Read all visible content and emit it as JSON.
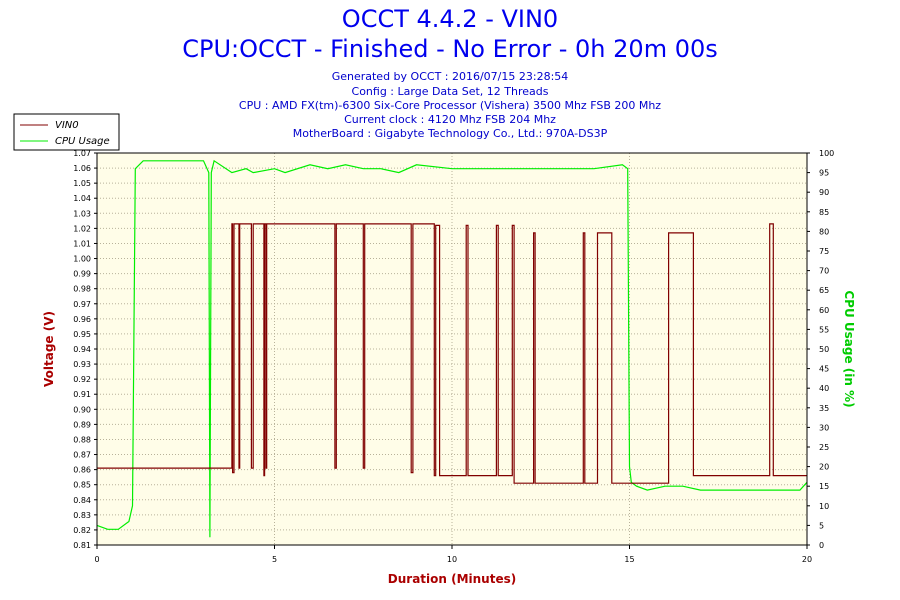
{
  "header": {
    "title": "OCCT 4.4.2 - VIN0",
    "subtitle": "CPU:OCCT - Finished - No Error - 0h 20m 00s",
    "info": [
      "Generated by OCCT : 2016/07/15 23:28:54",
      "Config : Large Data Set, 12 Threads",
      "CPU : AMD FX(tm)-6300 Six-Core Processor (Vishera) 3500 Mhz FSB 200 Mhz",
      "Current clock : 4120 Mhz FSB 204 Mhz",
      "MotherBoard : Gigabyte Technology Co., Ltd.: 970A-DS3P"
    ]
  },
  "colors": {
    "voltage": "#800000",
    "cpu": "#00ee00",
    "plot_bg": "#fffde8",
    "grid": "#b8b29a",
    "title": "#0000ee"
  },
  "chart_data": {
    "type": "line",
    "title": "OCCT 4.4.2 - VIN0",
    "xlabel": "Duration (Minutes)",
    "ylabel": "Voltage (V)",
    "y2label": "CPU Usage (in %)",
    "xlim": [
      0,
      20
    ],
    "ylim": [
      0.81,
      1.07
    ],
    "y2lim": [
      0,
      100
    ],
    "x_ticks": [
      "0",
      "5",
      "10",
      "15",
      "20"
    ],
    "y_ticks": [
      "0.81",
      "0.82",
      "0.83",
      "0.84",
      "0.85",
      "0.86",
      "0.87",
      "0.88",
      "0.89",
      "0.90",
      "0.91",
      "0.92",
      "0.93",
      "0.94",
      "0.95",
      "0.96",
      "0.97",
      "0.98",
      "0.99",
      "1.00",
      "1.01",
      "1.02",
      "1.03",
      "1.04",
      "1.05",
      "1.06",
      "1.07"
    ],
    "y2_ticks": [
      "0",
      "5",
      "10",
      "15",
      "20",
      "25",
      "30",
      "35",
      "40",
      "45",
      "50",
      "55",
      "60",
      "65",
      "70",
      "75",
      "80",
      "85",
      "90",
      "95",
      "100"
    ],
    "grid": true,
    "legend": "top-left",
    "series": [
      {
        "name": "VIN0",
        "axis": "left",
        "x": [
          0,
          3.8,
          3.8,
          3.82,
          3.82,
          3.86,
          3.86,
          4.0,
          4.0,
          4.02,
          4.02,
          4.35,
          4.35,
          4.4,
          4.4,
          4.7,
          4.7,
          4.72,
          4.72,
          4.76,
          4.76,
          4.78,
          4.78,
          6.7,
          6.7,
          6.74,
          6.74,
          7.5,
          7.5,
          7.54,
          7.54,
          8.85,
          8.85,
          8.9,
          8.9,
          9.5,
          9.5,
          9.54,
          9.54,
          9.65,
          9.65,
          10.4,
          10.4,
          10.45,
          10.45,
          11.25,
          11.25,
          11.3,
          11.3,
          11.7,
          11.7,
          11.75,
          11.75,
          12.3,
          12.3,
          12.34,
          12.34,
          13.7,
          13.7,
          13.74,
          13.74,
          14.1,
          14.1,
          14.5,
          14.5,
          15.0,
          15.0,
          16.1,
          16.1,
          16.14,
          16.14,
          16.8,
          16.8,
          16.84,
          16.84,
          18.95,
          18.95,
          19.05,
          19.05,
          20
        ],
        "values": [
          0.861,
          0.861,
          1.023,
          1.023,
          0.858,
          0.858,
          1.023,
          1.023,
          0.861,
          0.861,
          1.023,
          1.023,
          0.861,
          0.861,
          1.023,
          1.023,
          0.856,
          0.856,
          1.023,
          1.023,
          0.861,
          0.861,
          1.023,
          1.023,
          0.861,
          0.861,
          1.023,
          1.023,
          0.861,
          0.861,
          1.023,
          1.023,
          0.858,
          0.858,
          1.023,
          1.023,
          0.856,
          0.856,
          1.022,
          1.022,
          0.856,
          0.856,
          1.022,
          1.022,
          0.856,
          0.856,
          1.022,
          1.022,
          0.856,
          0.856,
          1.022,
          1.022,
          0.851,
          0.851,
          1.017,
          1.017,
          0.851,
          0.851,
          1.017,
          1.017,
          0.851,
          0.851,
          1.017,
          1.017,
          0.851,
          0.851,
          0.851,
          0.851,
          1.017,
          1.017,
          1.017,
          1.017,
          0.856,
          0.856,
          0.856,
          0.856,
          1.023,
          1.023,
          0.856,
          0.856
        ]
      },
      {
        "name": "CPU Usage",
        "axis": "right",
        "x": [
          0,
          0.3,
          0.6,
          0.9,
          1.0,
          1.08,
          1.3,
          2.0,
          3.0,
          3.15,
          3.18,
          3.22,
          3.3,
          3.8,
          4.2,
          4.4,
          5.0,
          5.3,
          6.0,
          6.5,
          7.0,
          7.5,
          8.0,
          8.5,
          9.0,
          10.0,
          11.0,
          12.0,
          13.0,
          14.0,
          14.8,
          14.95,
          15.0,
          15.05,
          15.2,
          15.5,
          16.0,
          16.5,
          17.0,
          17.5,
          18.0,
          18.5,
          19.0,
          19.5,
          19.8,
          20
        ],
        "values": [
          5,
          4,
          4,
          6,
          10,
          96,
          98,
          98,
          98,
          95,
          2,
          95,
          98,
          95,
          96,
          95,
          96,
          95,
          97,
          96,
          97,
          96,
          96,
          95,
          97,
          96,
          96,
          96,
          96,
          96,
          97,
          96,
          20,
          16,
          15,
          14,
          15,
          15,
          14,
          14,
          14,
          14,
          14,
          14,
          14,
          16
        ]
      }
    ]
  }
}
